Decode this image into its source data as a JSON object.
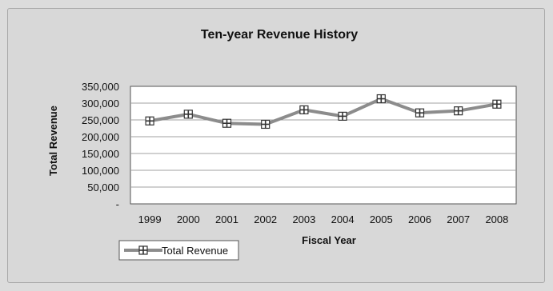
{
  "chart_data": {
    "type": "line",
    "title": "Ten-year Revenue History",
    "xlabel": "Fiscal Year",
    "ylabel": "Total Revenue",
    "categories": [
      "1999",
      "2000",
      "2001",
      "2002",
      "2003",
      "2004",
      "2005",
      "2006",
      "2007",
      "2008"
    ],
    "series": [
      {
        "name": "Total Revenue",
        "values": [
          247000,
          267000,
          240000,
          237000,
          280000,
          261000,
          313000,
          271000,
          277000,
          297000
        ],
        "color": "#8c8c8c",
        "marker": "square-plus"
      }
    ],
    "ylim": [
      0,
      350000
    ],
    "y_ticks": [
      0,
      50000,
      100000,
      150000,
      200000,
      250000,
      300000,
      350000
    ],
    "y_tick_labels": [
      "-",
      "50,000",
      "100,000",
      "150,000",
      "200,000",
      "250,000",
      "300,000",
      "350,000"
    ],
    "grid": true,
    "legend_position": "bottom-left",
    "plot_background": "#ffffff",
    "chart_background": "#d8d8d8",
    "gridline_color": "#a0a0a0"
  }
}
